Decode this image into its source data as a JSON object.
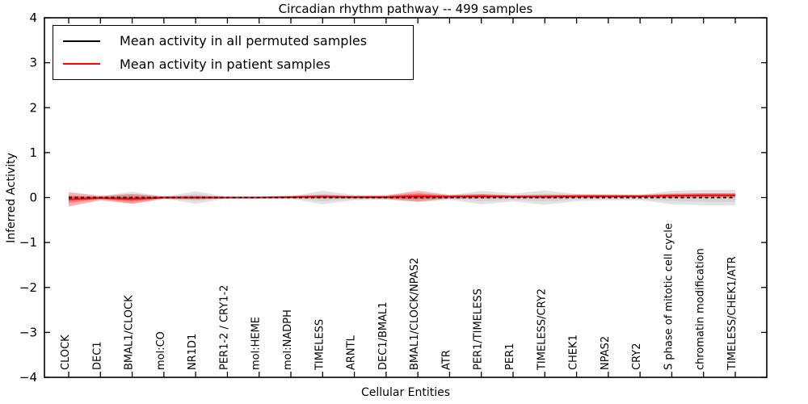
{
  "figure": {
    "title": "Circadian rhythm pathway -- 499 samples"
  },
  "axes": {
    "ylabel": "Inferred Activity",
    "xlabel": "Cellular Entities"
  },
  "legend": {
    "entries": [
      {
        "label": "Mean activity in all permuted samples",
        "color": "#000000"
      },
      {
        "label": "Mean activity in patient samples",
        "color": "#ff0000"
      }
    ]
  },
  "chart_data": {
    "type": "line",
    "title": "Circadian rhythm pathway -- 499 samples",
    "xlabel": "Cellular Entities",
    "ylabel": "Inferred Activity",
    "ylim": [
      -4,
      4
    ],
    "yticks": [
      -4,
      -3,
      -2,
      -1,
      0,
      1,
      2,
      3,
      4
    ],
    "grid": false,
    "legend_position": "upper left",
    "band_meaning": "shaded region is mean ± spread; gray = permuted samples, red = patient samples",
    "categories": [
      "CLOCK",
      "DEC1",
      "BMAL1/CLOCK",
      "mol:CO",
      "NR1D1",
      "PER1-2 / CRY1-2",
      "mol:HEME",
      "mol:NADPH",
      "TIMELESS",
      "ARNTL",
      "DEC1/BMAL1",
      "BMAL1/CLOCK/NPAS2",
      "ATR",
      "PER1/TIMELESS",
      "PER1",
      "TIMELESS/CRY2",
      "CHEK1",
      "NPAS2",
      "CRY2",
      "S phase of mitotic cell cycle",
      "chromatin modification",
      "TIMELESS/CHEK1/ATR"
    ],
    "series": [
      {
        "name": "Mean activity in all permuted samples",
        "color": "#000000",
        "line_style": "dashed",
        "mean": [
          0,
          0,
          0,
          0,
          0,
          0,
          0,
          0,
          0,
          0,
          0,
          0,
          0,
          0,
          0,
          0,
          0,
          0,
          0,
          0,
          0,
          0
        ],
        "std": [
          0.04,
          0.03,
          0.13,
          0.02,
          0.14,
          0.02,
          0.02,
          0.03,
          0.15,
          0.06,
          0.05,
          0.1,
          0.05,
          0.15,
          0.09,
          0.16,
          0.08,
          0.06,
          0.06,
          0.15,
          0.17,
          0.17
        ]
      },
      {
        "name": "Mean activity in patient samples",
        "color": "#ff0000",
        "line_style": "solid",
        "mean": [
          -0.04,
          -0.01,
          -0.03,
          0.0,
          0.0,
          0.0,
          0.0,
          0.01,
          0.02,
          0.01,
          0.01,
          0.03,
          0.02,
          0.03,
          0.02,
          0.02,
          0.03,
          0.03,
          0.03,
          0.04,
          0.05,
          0.05
        ],
        "std": [
          0.16,
          0.05,
          0.11,
          0.03,
          0.04,
          0.02,
          0.02,
          0.03,
          0.04,
          0.03,
          0.04,
          0.12,
          0.04,
          0.05,
          0.03,
          0.04,
          0.04,
          0.04,
          0.03,
          0.05,
          0.05,
          0.05
        ]
      }
    ]
  }
}
